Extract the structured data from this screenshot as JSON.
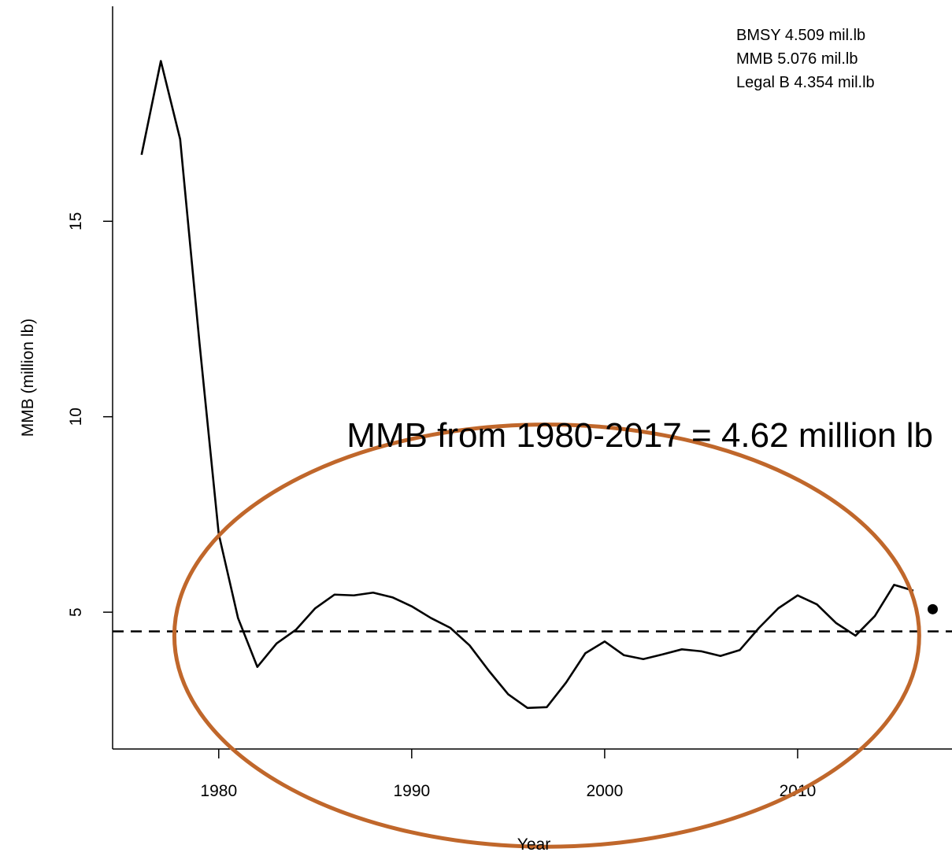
{
  "chart_data": {
    "type": "line",
    "title": "",
    "xlabel": "Year",
    "ylabel": "MMB (million lb)",
    "xlim": [
      1974.5,
      2018
    ],
    "ylim": [
      1.5,
      20.5
    ],
    "x_ticks": [
      1980,
      1990,
      2000,
      2010
    ],
    "y_ticks": [
      5,
      10,
      15
    ],
    "grid": false,
    "series": [
      {
        "x": [
          1976,
          1977,
          1978,
          1979,
          1980,
          1981,
          1982,
          1983,
          1984,
          1985,
          1986,
          1987,
          1988,
          1989,
          1990,
          1991,
          1992,
          1993,
          1994,
          1995,
          1996,
          1997,
          1998,
          1999,
          2000,
          2001,
          2002,
          2003,
          2004,
          2005,
          2006,
          2007,
          2008,
          2009,
          2010,
          2011,
          2012,
          2013,
          2014,
          2015,
          2016
        ],
        "y": [
          16.7,
          19.1,
          17.1,
          11.9,
          7.0,
          4.85,
          3.6,
          4.2,
          4.55,
          5.1,
          5.45,
          5.43,
          5.5,
          5.38,
          5.15,
          4.85,
          4.6,
          4.15,
          3.5,
          2.9,
          2.55,
          2.57,
          3.2,
          3.95,
          4.25,
          3.9,
          3.8,
          3.92,
          4.05,
          4.0,
          3.88,
          4.03,
          4.6,
          5.1,
          5.43,
          5.2,
          4.72,
          4.4,
          4.9,
          5.7,
          5.55
        ],
        "color": "#000000"
      }
    ],
    "reference_lines": [
      {
        "y": 4.509,
        "style": "dashed",
        "color": "#000000"
      }
    ],
    "points": [
      {
        "x": 2017,
        "y": 5.076,
        "color": "#000000"
      }
    ],
    "legend": {
      "placement": "top-right",
      "entries": [
        {
          "label": "BMSY",
          "value": "4.509",
          "unit": "mil.lb"
        },
        {
          "label": "MMB",
          "value": "5.076",
          "unit": "mil.lb"
        },
        {
          "label": "Legal B",
          "value": "4.354",
          "unit": "mil.lb"
        }
      ]
    },
    "annotations": [
      {
        "text": "MMB from 1980-2017 = 4.62 million lb"
      }
    ],
    "highlight_ellipse": {
      "color": "#c0672b",
      "x_center": 1997,
      "y_center": 4.4,
      "x_radius": 19.3,
      "y_radius": 5.4
    }
  }
}
